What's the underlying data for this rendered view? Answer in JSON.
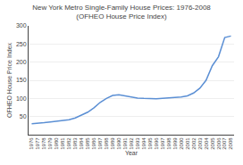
{
  "chart_data": {
    "type": "line",
    "title": "New York Metro Single-Family House Prices: 1976-2008",
    "subtitle": "(OFHEO House Price Index)",
    "xlabel": "Year",
    "ylabel": "OFHEO House Price Index",
    "color": "#5b8fd4",
    "x": [
      1976,
      1977,
      1978,
      1979,
      1980,
      1981,
      1982,
      1983,
      1984,
      1985,
      1986,
      1987,
      1988,
      1989,
      1990,
      1991,
      1992,
      1993,
      1994,
      1995,
      1996,
      1997,
      1998,
      1999,
      2000,
      2001,
      2002,
      2003,
      2004,
      2005,
      2006,
      2007,
      2008
    ],
    "values": [
      30,
      31,
      33,
      35,
      37,
      39,
      41,
      46,
      54,
      62,
      74,
      89,
      100,
      108,
      110,
      107,
      104,
      101,
      100,
      99,
      99,
      100,
      101,
      102,
      104,
      107,
      115,
      128,
      150,
      190,
      215,
      268,
      272
    ],
    "xlim": [
      1975.5,
      2008.5
    ],
    "xticks": [
      1976,
      1977,
      1978,
      1979,
      1980,
      1981,
      1982,
      1983,
      1984,
      1985,
      1986,
      1987,
      1988,
      1989,
      1990,
      1991,
      1992,
      1993,
      1994,
      1995,
      1996,
      1997,
      1998,
      1999,
      2000,
      2001,
      2002,
      2003,
      2004,
      2005,
      2006,
      2007,
      2008
    ],
    "ylim": [
      0,
      300
    ],
    "yticks": [
      50,
      100,
      150,
      200,
      250,
      300
    ],
    "grid": true
  }
}
